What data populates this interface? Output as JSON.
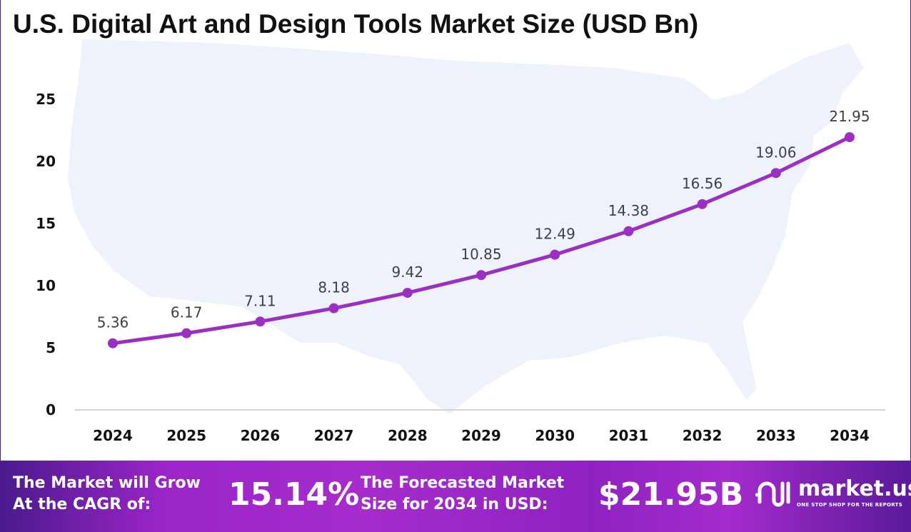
{
  "chart_data": {
    "type": "line",
    "title": "U.S. Digital Art and Design Tools Market Size (USD Bn)",
    "categories": [
      "2024",
      "2025",
      "2026",
      "2027",
      "2028",
      "2029",
      "2030",
      "2031",
      "2032",
      "2033",
      "2034"
    ],
    "values": [
      5.36,
      6.17,
      7.11,
      8.18,
      9.42,
      10.85,
      12.49,
      14.38,
      16.56,
      19.06,
      21.95
    ],
    "data_labels": [
      "5.36",
      "6.17",
      "7.11",
      "8.18",
      "9.42",
      "10.85",
      "12.49",
      "14.38",
      "16.56",
      "19.06",
      "21.95"
    ],
    "ylim": [
      0,
      25
    ],
    "yticks": [
      "0",
      "5",
      "10",
      "15",
      "20",
      "25"
    ],
    "xlabel": "",
    "ylabel": "",
    "grid": false,
    "line_color": "#9b2fc4"
  },
  "footer": {
    "cagr_label_1": "The Market will Grow",
    "cagr_label_2": "At the CAGR of:",
    "cagr_value": "15.14%",
    "forecast_label_1": "The Forecasted Market",
    "forecast_label_2": "Size for 2034 in USD:",
    "forecast_value": "$21.95B",
    "logo_name": "market.us",
    "logo_tagline": "ONE STOP SHOP FOR THE REPORTS"
  }
}
